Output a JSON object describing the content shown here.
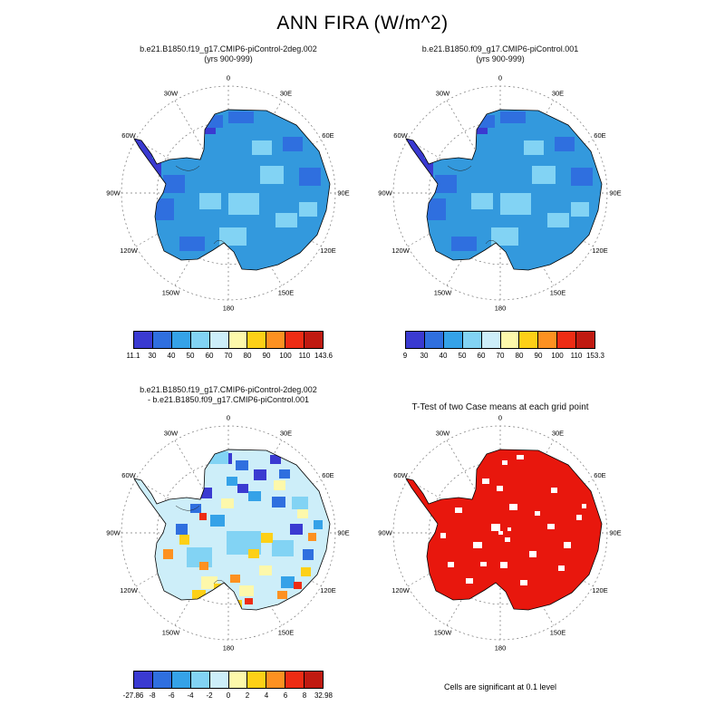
{
  "title": "ANN FIRA (W/m^2)",
  "compass_labels": [
    "0",
    "30E",
    "60E",
    "90E",
    "120E",
    "150E",
    "180",
    "150W",
    "120W",
    "90W",
    "60W",
    "30W"
  ],
  "palette": [
    "#3a3ad1",
    "#2f6fdf",
    "#35a2e8",
    "#82d3f4",
    "#cdeef9",
    "#fdf8ab",
    "#fdd017",
    "#fd9121",
    "#ee2c14",
    "#c01a11"
  ],
  "panels": [
    {
      "id": "case1",
      "title": "b.e21.B1850.f19_g17.CMIP6-piControl-2deg.002",
      "subtitle": "(yrs 900-999)",
      "map_type": "field",
      "base_color": "#3399dd",
      "colorbar_labels": [
        "11.1",
        "30",
        "40",
        "50",
        "60",
        "70",
        "80",
        "90",
        "100",
        "110",
        "143.6"
      ]
    },
    {
      "id": "case2",
      "title": "b.e21.B1850.f09_g17.CMIP6-piControl.001",
      "subtitle": "(yrs 900-999)",
      "map_type": "field",
      "base_color": "#3399dd",
      "colorbar_labels": [
        "9",
        "30",
        "40",
        "50",
        "60",
        "70",
        "80",
        "90",
        "100",
        "110",
        "153.3"
      ]
    },
    {
      "id": "diff",
      "title": "b.e21.B1850.f19_g17.CMIP6-piControl-2deg.002",
      "subtitle": "- b.e21.B1850.f09_g17.CMIP6-piControl.001",
      "map_type": "diff",
      "base_color": "#cdeef9",
      "colorbar_labels": [
        "-27.86",
        "-8",
        "-6",
        "-4",
        "-2",
        "0",
        "2",
        "4",
        "6",
        "8",
        "32.98"
      ]
    },
    {
      "id": "ttest",
      "title": "T-Test of two Case means at each grid point",
      "map_type": "ttest",
      "base_color": "#e8170d",
      "footnote": "Cells are significant at 0.1 level"
    }
  ],
  "chart_data": [
    {
      "type": "heatmap",
      "subtype": "south-polar-stereographic-map",
      "region": "Antarctica",
      "variable": "ANN FIRA (W/m^2)",
      "title": "b.e21.B1850.f19_g17.CMIP6-piControl-2deg.002",
      "subtitle": "(yrs 900-999)",
      "colorbar_ticks": [
        11.1,
        30,
        40,
        50,
        60,
        70,
        80,
        90,
        100,
        110,
        143.6
      ],
      "value_range": [
        11.1,
        143.6
      ],
      "palette_size": 10,
      "meridian_labels": [
        "0",
        "30E",
        "60E",
        "90E",
        "120E",
        "150E",
        "180",
        "150W",
        "120W",
        "90W",
        "60W",
        "30W"
      ],
      "legend_position": "below"
    },
    {
      "type": "heatmap",
      "subtype": "south-polar-stereographic-map",
      "region": "Antarctica",
      "variable": "ANN FIRA (W/m^2)",
      "title": "b.e21.B1850.f09_g17.CMIP6-piControl.001",
      "subtitle": "(yrs 900-999)",
      "colorbar_ticks": [
        9,
        30,
        40,
        50,
        60,
        70,
        80,
        90,
        100,
        110,
        153.3
      ],
      "value_range": [
        9,
        153.3
      ],
      "palette_size": 10,
      "meridian_labels": [
        "0",
        "30E",
        "60E",
        "90E",
        "120E",
        "150E",
        "180",
        "150W",
        "120W",
        "90W",
        "60W",
        "30W"
      ],
      "legend_position": "below"
    },
    {
      "type": "heatmap",
      "subtype": "south-polar-stereographic-map",
      "region": "Antarctica",
      "variable": "ANN FIRA difference (W/m^2)",
      "title": "b.e21.B1850.f19_g17.CMIP6-piControl-2deg.002 - b.e21.B1850.f09_g17.CMIP6-piControl.001",
      "colorbar_ticks": [
        -27.86,
        -8,
        -6,
        -4,
        -2,
        0,
        2,
        4,
        6,
        8,
        32.98
      ],
      "value_range": [
        -27.86,
        32.98
      ],
      "palette_size": 10,
      "meridian_labels": [
        "0",
        "30E",
        "60E",
        "90E",
        "120E",
        "150E",
        "180",
        "150W",
        "120W",
        "90W",
        "60W",
        "30W"
      ],
      "legend_position": "below"
    },
    {
      "type": "heatmap",
      "subtype": "south-polar-stereographic-map",
      "region": "Antarctica",
      "title": "T-Test of two Case means at each grid point",
      "note": "Cells are significant at 0.1 level",
      "significant_color": "#e8170d",
      "meridian_labels": [
        "0",
        "30E",
        "60E",
        "90E",
        "120E",
        "150E",
        "180",
        "150W",
        "120W",
        "90W",
        "60W",
        "30W"
      ]
    }
  ]
}
